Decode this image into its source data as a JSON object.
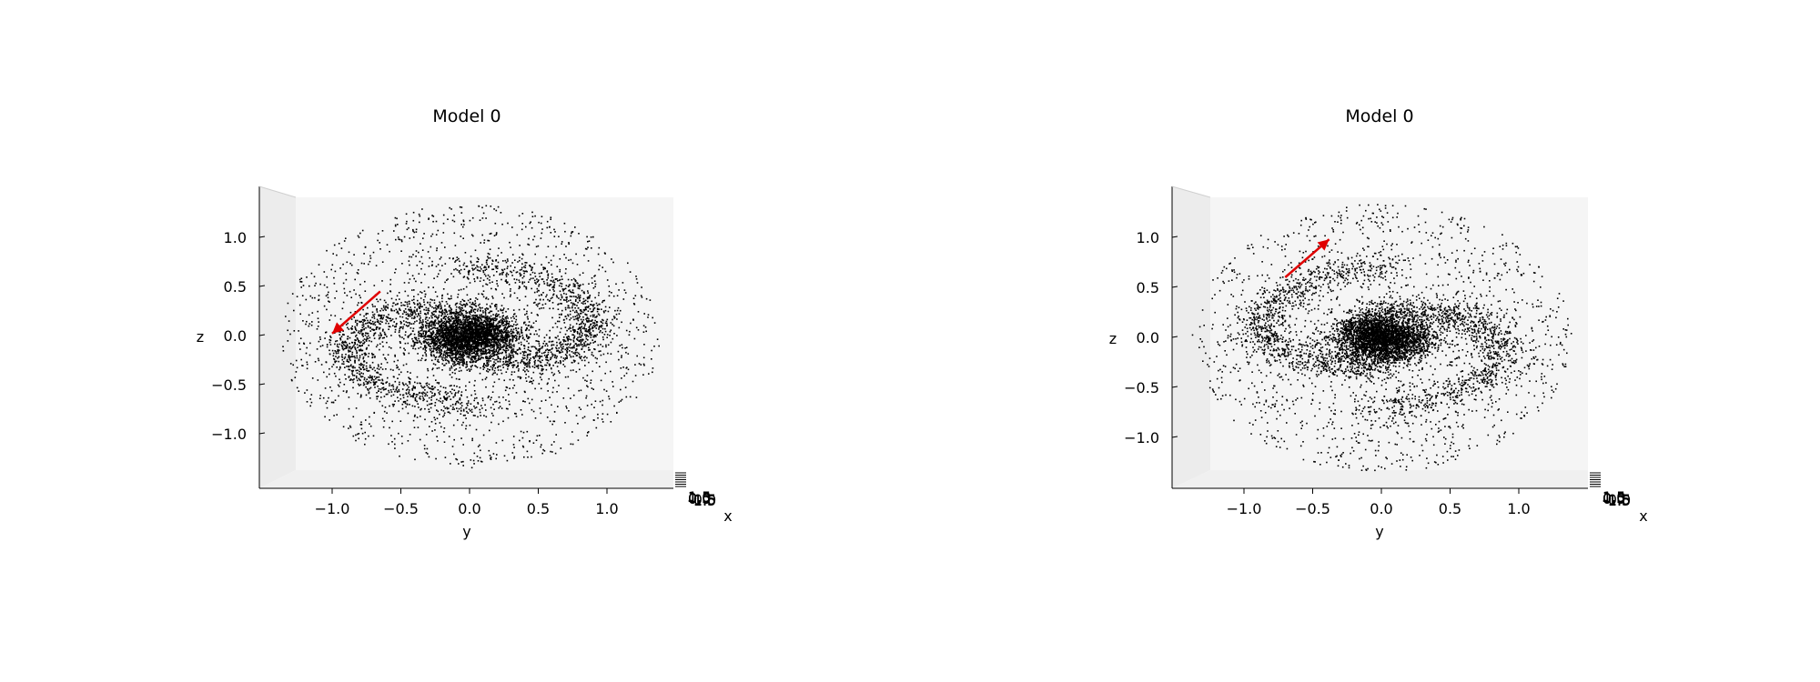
{
  "chart_data": [
    {
      "type": "scatter",
      "subtype": "3d-spiral-galaxy-projection",
      "title": "Model 0",
      "xlabel": "x",
      "ylabel": "y",
      "zlabel": "z",
      "y_ticks": [
        -1.0,
        -0.5,
        0.0,
        0.5,
        1.0
      ],
      "y_tick_labels": [
        "−1.0",
        "−0.5",
        "0.0",
        "0.5",
        "1.0"
      ],
      "z_ticks": [
        -1.0,
        -0.5,
        0.0,
        0.5,
        1.0
      ],
      "z_tick_labels": [
        "−1.0",
        "−0.5",
        "0.0",
        "0.5",
        "1.0"
      ],
      "x_tick_labels": [
        "1.5",
        "1.0",
        "0.5",
        "0.0",
        "-0.5",
        "-1.0",
        "-1.5"
      ],
      "ylim": [
        -1.5,
        1.5
      ],
      "zlim": [
        -1.5,
        1.5
      ],
      "point_color": "#000000",
      "pane_color": "#f2f2f2",
      "arrow_color": "#e00000",
      "arrow": {
        "from": [
          -0.65,
          0.45
        ],
        "to": [
          -1.0,
          0.02
        ]
      },
      "spiral_orientation": 1,
      "grid": false
    },
    {
      "type": "scatter",
      "subtype": "3d-spiral-galaxy-projection",
      "title": "Model 0",
      "xlabel": "x",
      "ylabel": "y",
      "zlabel": "z",
      "y_ticks": [
        -1.0,
        -0.5,
        0.0,
        0.5,
        1.0
      ],
      "y_tick_labels": [
        "−1.0",
        "−0.5",
        "0.0",
        "0.5",
        "1.0"
      ],
      "z_ticks": [
        -1.0,
        -0.5,
        0.0,
        0.5,
        1.0
      ],
      "z_tick_labels": [
        "−1.0",
        "−0.5",
        "0.0",
        "0.5",
        "1.0"
      ],
      "x_tick_labels": [
        "1.5",
        "1.0",
        "0.5",
        "0.0",
        "-0.5",
        "-1.0",
        "-1.5"
      ],
      "ylim": [
        -1.5,
        1.5
      ],
      "zlim": [
        -1.5,
        1.5
      ],
      "point_color": "#000000",
      "pane_color": "#f2f2f2",
      "arrow_color": "#e00000",
      "arrow": {
        "from": [
          -0.7,
          0.6
        ],
        "to": [
          -0.38,
          0.98
        ]
      },
      "spiral_orientation": -1,
      "grid": false
    }
  ]
}
